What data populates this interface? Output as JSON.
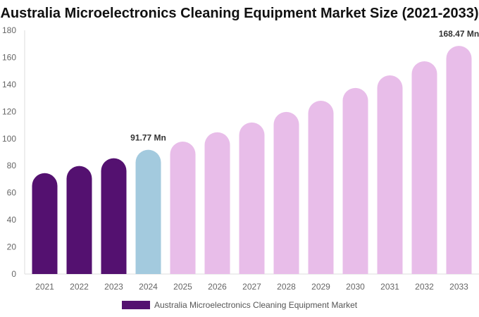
{
  "chart_data": {
    "type": "bar",
    "title": "Australia Microelectronics Cleaning Equipment Market Size (2021-2033)",
    "categories": [
      "2021",
      "2022",
      "2023",
      "2024",
      "2025",
      "2026",
      "2027",
      "2028",
      "2029",
      "2030",
      "2031",
      "2032",
      "2033"
    ],
    "series": [
      {
        "name": "Australia Microelectronics Cleaning Equipment Market",
        "values": [
          74.5,
          79.8,
          85.5,
          91.77,
          97.8,
          104.7,
          111.9,
          119.7,
          128.0,
          137.4,
          146.7,
          157.1,
          168.47
        ]
      }
    ],
    "data_labels": {
      "2024": "91.77 Mn",
      "2033": "168.47 Mn"
    },
    "ylim": [
      0,
      180
    ],
    "yticks": [
      0,
      20,
      40,
      60,
      80,
      100,
      120,
      140,
      160,
      180
    ],
    "grid": false,
    "legend": "bottom",
    "colors": {
      "historical": "#541170",
      "base_year": "#a3cade",
      "forecast": "#e8bde9"
    },
    "color_groups": [
      "historical",
      "historical",
      "historical",
      "base_year",
      "forecast",
      "forecast",
      "forecast",
      "forecast",
      "forecast",
      "forecast",
      "forecast",
      "forecast",
      "forecast"
    ]
  }
}
